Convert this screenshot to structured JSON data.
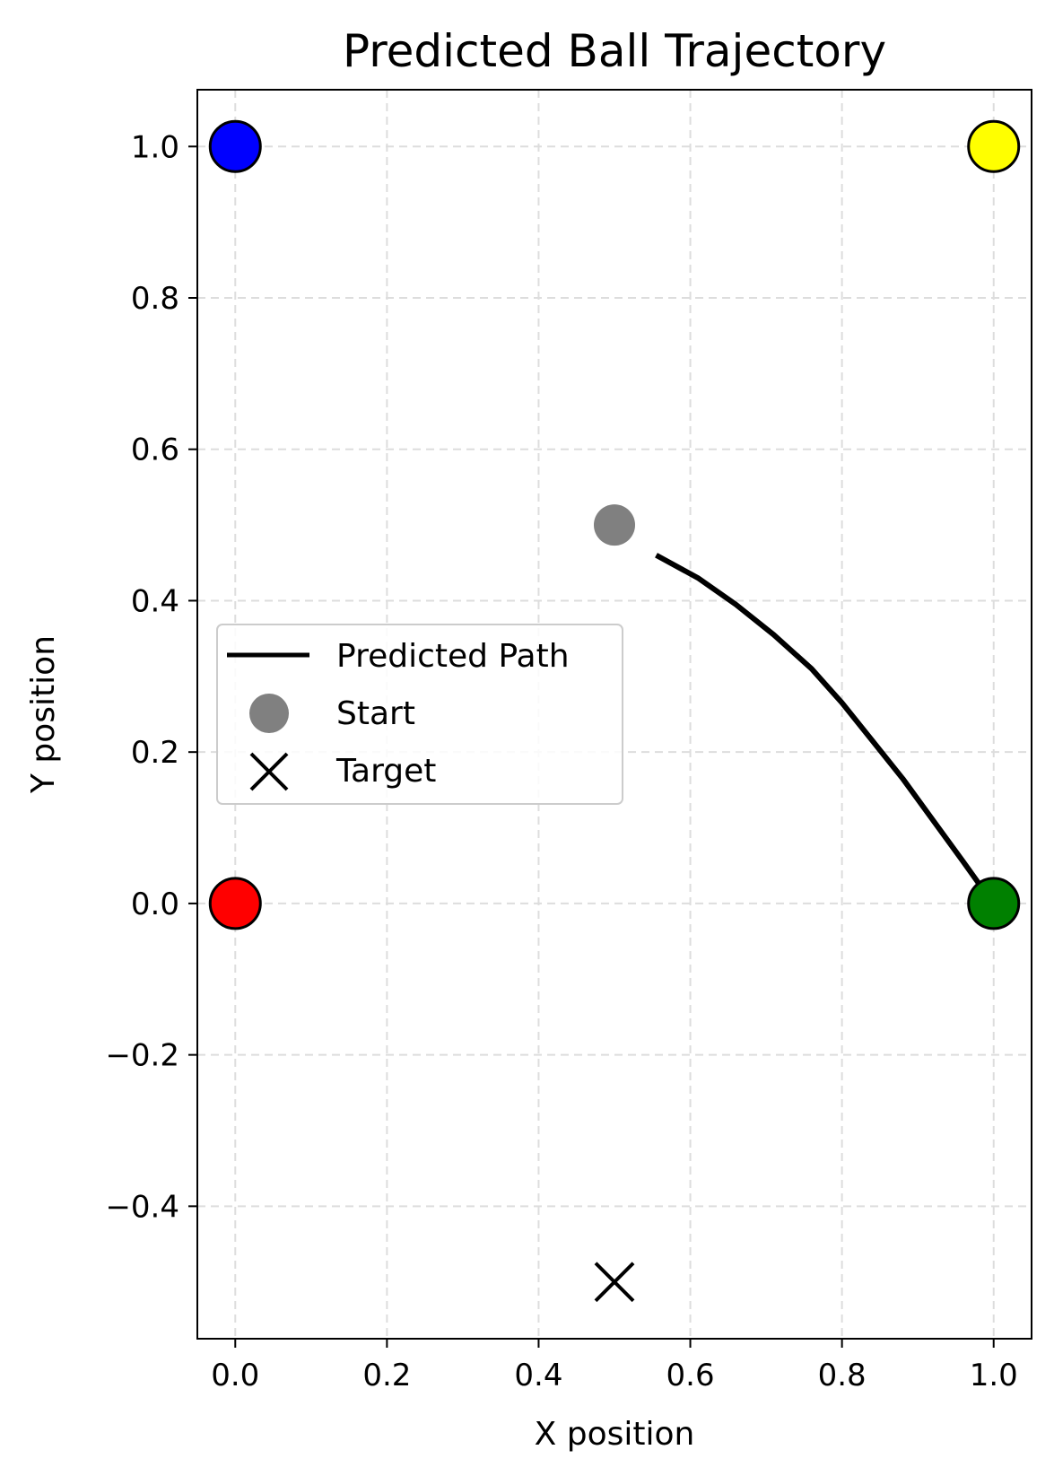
{
  "chart_data": {
    "type": "scatter",
    "title": "Predicted Ball Trajectory",
    "xlabel": "X position",
    "ylabel": "Y position",
    "xlim": [
      -0.05,
      1.05
    ],
    "ylim": [
      -0.575,
      1.075
    ],
    "xticks": [
      0.0,
      0.2,
      0.4,
      0.6,
      0.8,
      1.0
    ],
    "xtick_labels": [
      "0.0",
      "0.2",
      "0.4",
      "0.6",
      "0.8",
      "1.0"
    ],
    "yticks": [
      -0.4,
      -0.2,
      0.0,
      0.2,
      0.4,
      0.6,
      0.8,
      1.0
    ],
    "ytick_labels": [
      "−0.4",
      "−0.2",
      "0.0",
      "0.2",
      "0.4",
      "0.6",
      "0.8",
      "1.0"
    ],
    "grid": true,
    "legend_position": "center-left",
    "corners": [
      {
        "x": 0.0,
        "y": 1.0,
        "color": "#0000ff"
      },
      {
        "x": 1.0,
        "y": 1.0,
        "color": "#ffff00"
      },
      {
        "x": 0.0,
        "y": 0.0,
        "color": "#ff0000"
      },
      {
        "x": 1.0,
        "y": 0.0,
        "color": "#008000"
      }
    ],
    "series": [
      {
        "name": "Predicted Path",
        "kind": "line",
        "color": "#000000",
        "x": [
          0.555,
          0.61,
          0.66,
          0.71,
          0.76,
          0.8,
          0.84,
          0.88,
          0.92,
          0.96,
          0.985
        ],
        "y": [
          0.46,
          0.43,
          0.395,
          0.355,
          0.31,
          0.265,
          0.215,
          0.165,
          0.11,
          0.055,
          0.02
        ]
      },
      {
        "name": "Start",
        "kind": "point",
        "color": "#808080",
        "x": [
          0.5
        ],
        "y": [
          0.5
        ]
      },
      {
        "name": "Target",
        "kind": "x-marker",
        "color": "#000000",
        "x": [
          0.5
        ],
        "y": [
          -0.5
        ]
      }
    ]
  }
}
